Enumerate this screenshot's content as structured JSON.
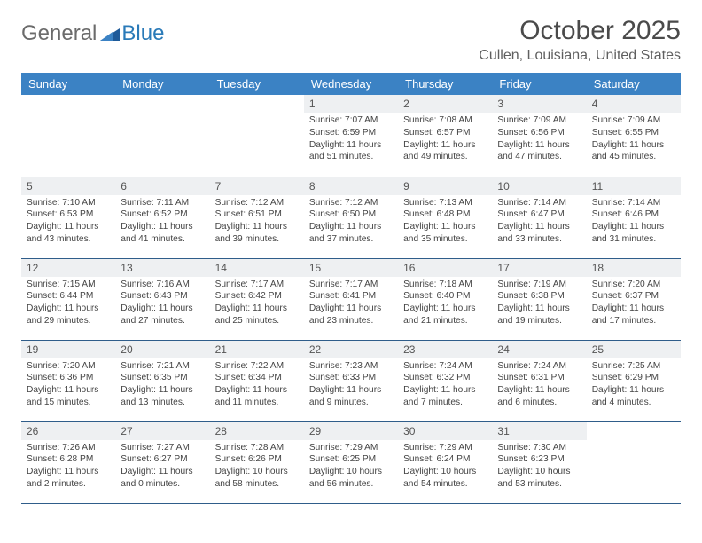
{
  "logo": {
    "general": "General",
    "blue": "Blue"
  },
  "title": "October 2025",
  "location": "Cullen, Louisiana, United States",
  "colors": {
    "header_bg": "#3b82c4",
    "header_text": "#ffffff",
    "daynum_bg": "#eef0f2",
    "row_divider": "#2f5d8a",
    "page_bg": "#ffffff",
    "text": "#333333",
    "logo_gray": "#6b6b6b",
    "logo_blue": "#2a7ab8"
  },
  "day_headers": [
    "Sunday",
    "Monday",
    "Tuesday",
    "Wednesday",
    "Thursday",
    "Friday",
    "Saturday"
  ],
  "weeks": [
    [
      {
        "day": "",
        "sunrise": "",
        "sunset": "",
        "daylight": ""
      },
      {
        "day": "",
        "sunrise": "",
        "sunset": "",
        "daylight": ""
      },
      {
        "day": "",
        "sunrise": "",
        "sunset": "",
        "daylight": ""
      },
      {
        "day": "1",
        "sunrise": "Sunrise: 7:07 AM",
        "sunset": "Sunset: 6:59 PM",
        "daylight": "Daylight: 11 hours and 51 minutes."
      },
      {
        "day": "2",
        "sunrise": "Sunrise: 7:08 AM",
        "sunset": "Sunset: 6:57 PM",
        "daylight": "Daylight: 11 hours and 49 minutes."
      },
      {
        "day": "3",
        "sunrise": "Sunrise: 7:09 AM",
        "sunset": "Sunset: 6:56 PM",
        "daylight": "Daylight: 11 hours and 47 minutes."
      },
      {
        "day": "4",
        "sunrise": "Sunrise: 7:09 AM",
        "sunset": "Sunset: 6:55 PM",
        "daylight": "Daylight: 11 hours and 45 minutes."
      }
    ],
    [
      {
        "day": "5",
        "sunrise": "Sunrise: 7:10 AM",
        "sunset": "Sunset: 6:53 PM",
        "daylight": "Daylight: 11 hours and 43 minutes."
      },
      {
        "day": "6",
        "sunrise": "Sunrise: 7:11 AM",
        "sunset": "Sunset: 6:52 PM",
        "daylight": "Daylight: 11 hours and 41 minutes."
      },
      {
        "day": "7",
        "sunrise": "Sunrise: 7:12 AM",
        "sunset": "Sunset: 6:51 PM",
        "daylight": "Daylight: 11 hours and 39 minutes."
      },
      {
        "day": "8",
        "sunrise": "Sunrise: 7:12 AM",
        "sunset": "Sunset: 6:50 PM",
        "daylight": "Daylight: 11 hours and 37 minutes."
      },
      {
        "day": "9",
        "sunrise": "Sunrise: 7:13 AM",
        "sunset": "Sunset: 6:48 PM",
        "daylight": "Daylight: 11 hours and 35 minutes."
      },
      {
        "day": "10",
        "sunrise": "Sunrise: 7:14 AM",
        "sunset": "Sunset: 6:47 PM",
        "daylight": "Daylight: 11 hours and 33 minutes."
      },
      {
        "day": "11",
        "sunrise": "Sunrise: 7:14 AM",
        "sunset": "Sunset: 6:46 PM",
        "daylight": "Daylight: 11 hours and 31 minutes."
      }
    ],
    [
      {
        "day": "12",
        "sunrise": "Sunrise: 7:15 AM",
        "sunset": "Sunset: 6:44 PM",
        "daylight": "Daylight: 11 hours and 29 minutes."
      },
      {
        "day": "13",
        "sunrise": "Sunrise: 7:16 AM",
        "sunset": "Sunset: 6:43 PM",
        "daylight": "Daylight: 11 hours and 27 minutes."
      },
      {
        "day": "14",
        "sunrise": "Sunrise: 7:17 AM",
        "sunset": "Sunset: 6:42 PM",
        "daylight": "Daylight: 11 hours and 25 minutes."
      },
      {
        "day": "15",
        "sunrise": "Sunrise: 7:17 AM",
        "sunset": "Sunset: 6:41 PM",
        "daylight": "Daylight: 11 hours and 23 minutes."
      },
      {
        "day": "16",
        "sunrise": "Sunrise: 7:18 AM",
        "sunset": "Sunset: 6:40 PM",
        "daylight": "Daylight: 11 hours and 21 minutes."
      },
      {
        "day": "17",
        "sunrise": "Sunrise: 7:19 AM",
        "sunset": "Sunset: 6:38 PM",
        "daylight": "Daylight: 11 hours and 19 minutes."
      },
      {
        "day": "18",
        "sunrise": "Sunrise: 7:20 AM",
        "sunset": "Sunset: 6:37 PM",
        "daylight": "Daylight: 11 hours and 17 minutes."
      }
    ],
    [
      {
        "day": "19",
        "sunrise": "Sunrise: 7:20 AM",
        "sunset": "Sunset: 6:36 PM",
        "daylight": "Daylight: 11 hours and 15 minutes."
      },
      {
        "day": "20",
        "sunrise": "Sunrise: 7:21 AM",
        "sunset": "Sunset: 6:35 PM",
        "daylight": "Daylight: 11 hours and 13 minutes."
      },
      {
        "day": "21",
        "sunrise": "Sunrise: 7:22 AM",
        "sunset": "Sunset: 6:34 PM",
        "daylight": "Daylight: 11 hours and 11 minutes."
      },
      {
        "day": "22",
        "sunrise": "Sunrise: 7:23 AM",
        "sunset": "Sunset: 6:33 PM",
        "daylight": "Daylight: 11 hours and 9 minutes."
      },
      {
        "day": "23",
        "sunrise": "Sunrise: 7:24 AM",
        "sunset": "Sunset: 6:32 PM",
        "daylight": "Daylight: 11 hours and 7 minutes."
      },
      {
        "day": "24",
        "sunrise": "Sunrise: 7:24 AM",
        "sunset": "Sunset: 6:31 PM",
        "daylight": "Daylight: 11 hours and 6 minutes."
      },
      {
        "day": "25",
        "sunrise": "Sunrise: 7:25 AM",
        "sunset": "Sunset: 6:29 PM",
        "daylight": "Daylight: 11 hours and 4 minutes."
      }
    ],
    [
      {
        "day": "26",
        "sunrise": "Sunrise: 7:26 AM",
        "sunset": "Sunset: 6:28 PM",
        "daylight": "Daylight: 11 hours and 2 minutes."
      },
      {
        "day": "27",
        "sunrise": "Sunrise: 7:27 AM",
        "sunset": "Sunset: 6:27 PM",
        "daylight": "Daylight: 11 hours and 0 minutes."
      },
      {
        "day": "28",
        "sunrise": "Sunrise: 7:28 AM",
        "sunset": "Sunset: 6:26 PM",
        "daylight": "Daylight: 10 hours and 58 minutes."
      },
      {
        "day": "29",
        "sunrise": "Sunrise: 7:29 AM",
        "sunset": "Sunset: 6:25 PM",
        "daylight": "Daylight: 10 hours and 56 minutes."
      },
      {
        "day": "30",
        "sunrise": "Sunrise: 7:29 AM",
        "sunset": "Sunset: 6:24 PM",
        "daylight": "Daylight: 10 hours and 54 minutes."
      },
      {
        "day": "31",
        "sunrise": "Sunrise: 7:30 AM",
        "sunset": "Sunset: 6:23 PM",
        "daylight": "Daylight: 10 hours and 53 minutes."
      },
      {
        "day": "",
        "sunrise": "",
        "sunset": "",
        "daylight": ""
      }
    ]
  ]
}
